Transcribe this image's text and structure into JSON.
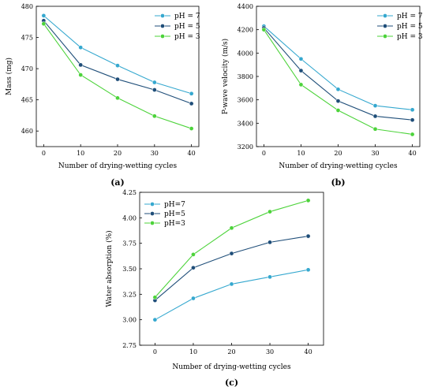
{
  "colors": {
    "ph7": "#35a8cf",
    "ph5": "#1f4e79",
    "ph3": "#4cd33a"
  },
  "chart_data": [
    {
      "type": "line",
      "panel_label": "(a)",
      "xlabel": "Number of drying-wetting cycles",
      "ylabel": "Mass (mg)",
      "x": [
        0,
        10,
        20,
        30,
        40
      ],
      "xlim": [
        -2,
        42
      ],
      "xticks": [
        "0",
        "10",
        "20",
        "30",
        "40"
      ],
      "ylim": [
        457.5,
        480
      ],
      "yticks": [
        460,
        465,
        470,
        475,
        480
      ],
      "ytick_labels": [
        "460",
        "465",
        "470",
        "475",
        "480"
      ],
      "legend_position": "top-right",
      "series": [
        {
          "name": "pH = 7",
          "color": "#35a8cf",
          "values": [
            478.5,
            473.4,
            470.5,
            467.8,
            466.0
          ]
        },
        {
          "name": "pH = 5",
          "color": "#1f4e79",
          "values": [
            477.7,
            470.6,
            468.3,
            466.6,
            464.4
          ]
        },
        {
          "name": "pH = 3",
          "color": "#4cd33a",
          "values": [
            477.2,
            469.0,
            465.3,
            462.4,
            460.4
          ]
        }
      ]
    },
    {
      "type": "line",
      "panel_label": "(b)",
      "xlabel": "Number of drying-wetting cycles",
      "ylabel": "P-wave velocity (m/s)",
      "x": [
        0,
        10,
        20,
        30,
        40
      ],
      "xlim": [
        -2,
        42
      ],
      "xticks": [
        "0",
        "10",
        "20",
        "30",
        "40"
      ],
      "ylim": [
        3200,
        4400
      ],
      "yticks": [
        3200,
        3400,
        3600,
        3800,
        4000,
        4200,
        4400
      ],
      "ytick_labels": [
        "3200",
        "3400",
        "3600",
        "3800",
        "4000",
        "4200",
        "4400"
      ],
      "legend_position": "top-right",
      "series": [
        {
          "name": "pH = 7",
          "color": "#35a8cf",
          "values": [
            4230,
            3950,
            3690,
            3550,
            3515
          ]
        },
        {
          "name": "pH = 5",
          "color": "#1f4e79",
          "values": [
            4215,
            3850,
            3590,
            3460,
            3428
          ]
        },
        {
          "name": "pH = 3",
          "color": "#4cd33a",
          "values": [
            4200,
            3730,
            3510,
            3350,
            3305
          ]
        }
      ]
    },
    {
      "type": "line",
      "panel_label": "(c)",
      "xlabel": "Number of drying-wetting cycles",
      "ylabel": "Water absorption (%)",
      "x": [
        0,
        10,
        20,
        30,
        40
      ],
      "xlim": [
        -4,
        44
      ],
      "xticks": [
        "0",
        "10",
        "20",
        "30",
        "40"
      ],
      "ylim": [
        2.75,
        4.25
      ],
      "yticks": [
        2.75,
        3.0,
        3.25,
        3.5,
        3.75,
        4.0,
        4.25
      ],
      "ytick_labels": [
        "2.75",
        "3.00",
        "3.25",
        "3.50",
        "3.75",
        "4.00",
        "4.25"
      ],
      "legend_position": "top-left",
      "series": [
        {
          "name": "pH=7",
          "color": "#35a8cf",
          "values": [
            3.0,
            3.21,
            3.35,
            3.42,
            3.49
          ]
        },
        {
          "name": "pH=5",
          "color": "#1f4e79",
          "values": [
            3.19,
            3.51,
            3.65,
            3.76,
            3.82
          ]
        },
        {
          "name": "pH=3",
          "color": "#4cd33a",
          "values": [
            3.22,
            3.64,
            3.9,
            4.06,
            4.17
          ]
        }
      ]
    }
  ]
}
